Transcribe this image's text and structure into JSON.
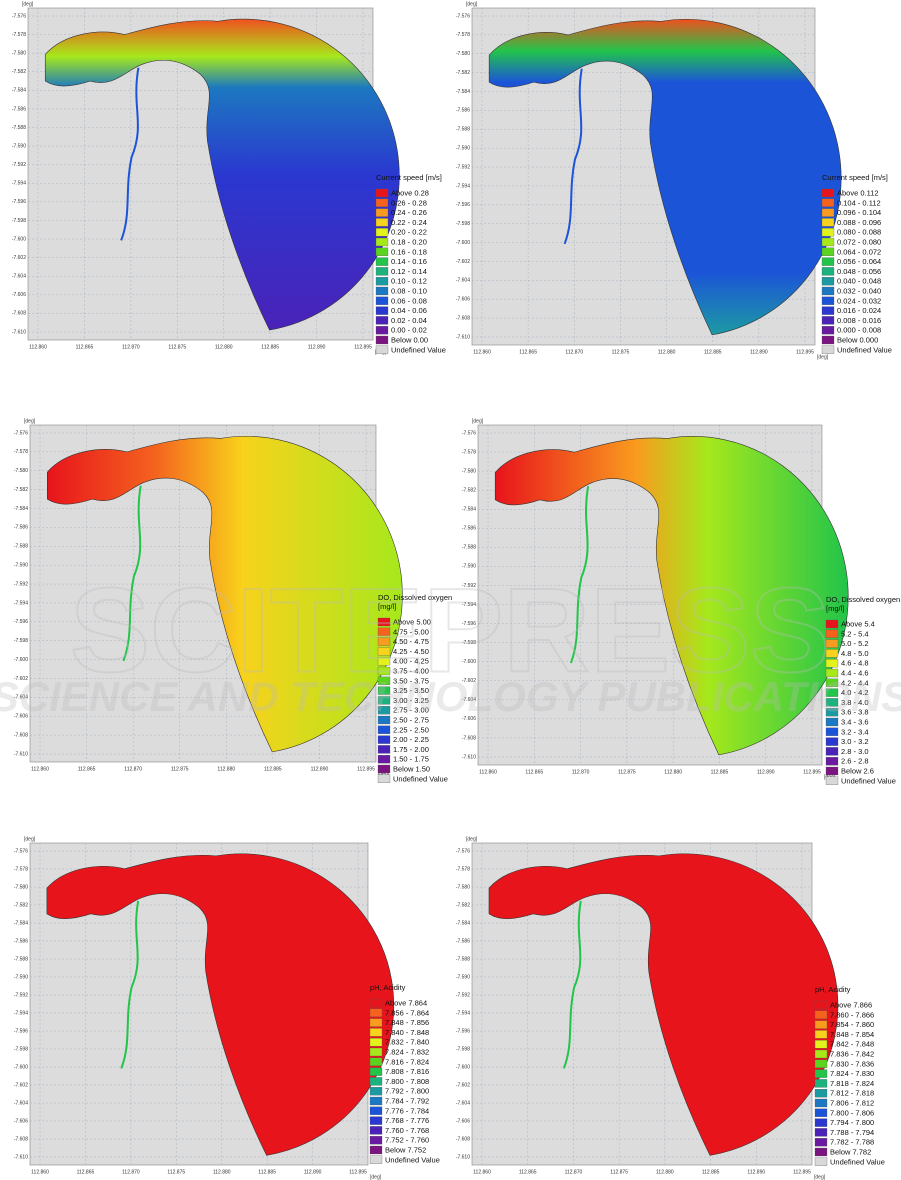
{
  "axes": {
    "unit": "[deg]",
    "yticks": [
      "-7.576",
      "-7.578",
      "-7.580",
      "-7.582",
      "-7.584",
      "-7.586",
      "-7.588",
      "-7.590",
      "-7.592",
      "-7.594",
      "-7.596",
      "-7.598",
      "-7.600",
      "-7.602",
      "-7.604",
      "-7.606",
      "-7.608",
      "-7.610"
    ],
    "xticks": [
      "112.860",
      "112.865",
      "112.870",
      "112.875",
      "112.880",
      "112.885",
      "112.890",
      "112.895"
    ]
  },
  "legend_colors": [
    "#e8141c",
    "#f4621e",
    "#f99b1e",
    "#f8d21c",
    "#e2f21c",
    "#a6e81c",
    "#5ad41e",
    "#22c44a",
    "#1cb27e",
    "#1c9aa2",
    "#1c78c0",
    "#1c54d8",
    "#2a38d0",
    "#4a22b8",
    "#6a1aa0",
    "#7a1480",
    "#d8d8d8"
  ],
  "panels": [
    {
      "legend": {
        "title": [
          "Current speed [m/s]"
        ],
        "entries": [
          "Above 0.28",
          "0.26 - 0.28",
          "0.24 - 0.26",
          "0.22 - 0.24",
          "0.20 - 0.22",
          "0.18 - 0.20",
          "0.16 - 0.18",
          "0.14 - 0.16",
          "0.12 - 0.14",
          "0.10 - 0.12",
          "0.08 - 0.10",
          "0.06 - 0.08",
          "0.04 - 0.06",
          "0.02 - 0.04",
          "0.00 - 0.02",
          "Below 0.00",
          "Undefined Value"
        ]
      }
    },
    {
      "legend": {
        "title": [
          "Current speed [m/s]"
        ],
        "entries": [
          "Above 0.112",
          "0.104 - 0.112",
          "0.096 - 0.104",
          "0.088 - 0.096",
          "0.080 - 0.088",
          "0.072 - 0.080",
          "0.064 - 0.072",
          "0.056 - 0.064",
          "0.048 - 0.056",
          "0.040 - 0.048",
          "0.032 - 0.040",
          "0.024 - 0.032",
          "0.016 - 0.024",
          "0.008 - 0.016",
          "0.000 - 0.008",
          "Below 0.000",
          "Undefined Value"
        ]
      }
    },
    {
      "legend": {
        "title": [
          "DO, Dissolved oxygen",
          "[mg/l]"
        ],
        "entries": [
          "Above 5.00",
          "4.75 - 5.00",
          "4.50 - 4.75",
          "4.25 - 4.50",
          "4.00 - 4.25",
          "3.75 - 4.00",
          "3.50 - 3.75",
          "3.25 - 3.50",
          "3.00 - 3.25",
          "2.75 - 3.00",
          "2.50 - 2.75",
          "2.25 - 2.50",
          "2.00 - 2.25",
          "1.75 - 2.00",
          "1.50 - 1.75",
          "Below 1.50",
          "Undefined Value"
        ]
      }
    },
    {
      "legend": {
        "title": [
          "DO, Dissolved oxygen",
          "[mg/l]"
        ],
        "entries": [
          "Above 5.4",
          "5.2 - 5.4",
          "5.0 - 5.2",
          "4.8 - 5.0",
          "4.6 - 4.8",
          "4.4 - 4.6",
          "4.2 - 4.4",
          "4.0 - 4.2",
          "3.8 - 4.0",
          "3.6 - 3.8",
          "3.4 - 3.6",
          "3.2 - 3.4",
          "3.0 - 3.2",
          "2.8 - 3.0",
          "2.6 - 2.8",
          "Below 2.6",
          "Undefined Value"
        ]
      }
    },
    {
      "legend": {
        "title": [
          "pH, Acidity"
        ],
        "entries": [
          "Above 7.864",
          "7.856 - 7.864",
          "7.848 - 7.856",
          "7.840 - 7.848",
          "7.832 - 7.840",
          "7.824 - 7.832",
          "7.816 - 7.824",
          "7.808 - 7.816",
          "7.800 - 7.808",
          "7.792 - 7.800",
          "7.784 - 7.792",
          "7.776 - 7.784",
          "7.768 - 7.776",
          "7.760 - 7.768",
          "7.752 - 7.760",
          "Below 7.752",
          "Undefined Value"
        ]
      }
    },
    {
      "legend": {
        "title": [
          "pH, Acidity"
        ],
        "entries": [
          "Above 7.866",
          "7.860 - 7.866",
          "7.854 - 7.860",
          "7.848 - 7.854",
          "7.842 - 7.848",
          "7.836 - 7.842",
          "7.830 - 7.836",
          "7.824 - 7.830",
          "7.818 - 7.824",
          "7.812 - 7.818",
          "7.806 - 7.812",
          "7.800 - 7.806",
          "7.794 - 7.800",
          "7.788 - 7.794",
          "7.782 - 7.788",
          "Below 7.782",
          "Undefined Value"
        ]
      }
    }
  ],
  "watermark": {
    "title": "SCITEPRESS",
    "subtitle": "SCIENCE AND TECHNOLOGY PUBLICATIONS"
  }
}
